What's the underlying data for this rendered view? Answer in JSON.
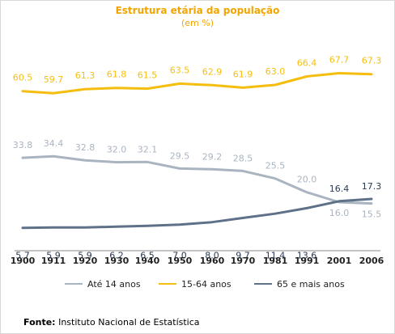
{
  "chart_data": {
    "type": "line",
    "title": "Estrutura etária da população",
    "subtitle": "(em %)",
    "x": [
      "1900",
      "1911",
      "1920",
      "1930",
      "1940",
      "1950",
      "1960",
      "1970",
      "1981",
      "1991",
      "2001",
      "2006"
    ],
    "series": [
      {
        "name": "Até 14 anos",
        "color": "#aab4c1",
        "values": [
          33.8,
          34.4,
          32.8,
          32.0,
          32.1,
          29.5,
          29.2,
          28.5,
          25.5,
          20.0,
          16.0,
          15.5
        ]
      },
      {
        "name": "15-64 anos",
        "color": "#f5be0f",
        "values": [
          60.5,
          59.7,
          61.3,
          61.8,
          61.5,
          63.5,
          62.9,
          61.9,
          63.0,
          66.4,
          67.7,
          67.3
        ]
      },
      {
        "name": "65 e mais anos",
        "color": "#5f7189",
        "values": [
          5.7,
          5.9,
          5.9,
          6.2,
          6.5,
          7.0,
          8.0,
          9.7,
          11.4,
          13.6,
          16.4,
          17.3
        ]
      }
    ],
    "value_labels": [
      [
        "33.8",
        "34.4",
        "32.8",
        "32.0",
        "32.1",
        "29.5",
        "29.2",
        "28.5",
        "25.5",
        "20.0",
        "16.0",
        "15.5"
      ],
      [
        "60.5",
        "59.7",
        "61.3",
        "61.8",
        "61.5",
        "63.5",
        "62.9",
        "61.9",
        "63.0",
        "66.4",
        "67.7",
        "67.3"
      ],
      [
        "5.7",
        "5.9",
        "5.9",
        "6.2",
        "6.5",
        "7.0",
        "8.0",
        "9.7",
        "11.4",
        "13.6",
        "16.4",
        "17.3"
      ]
    ],
    "ylim": [
      0,
      75
    ],
    "grid": false,
    "legend_position": "bottom"
  },
  "source": {
    "label": "Fonte:",
    "text": "Instituto Nacional de Estatística"
  }
}
